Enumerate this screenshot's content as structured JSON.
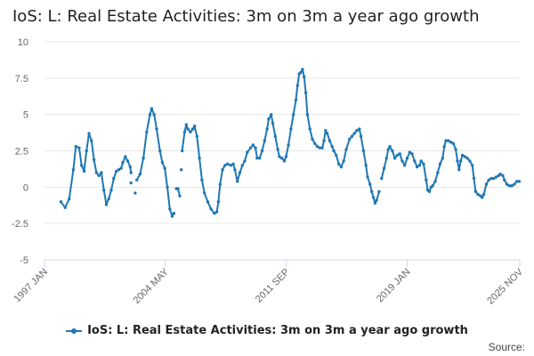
{
  "page": {
    "title": "IoS: L: Real Estate Activities: 3m on 3m a year ago growth",
    "source_label": "Source:"
  },
  "colors": {
    "series": "#1f78b4",
    "grid": "#e6e6e6",
    "axis": "#ccd6eb",
    "tick_text": "#666666"
  },
  "chart_data": {
    "type": "line",
    "title": "IoS: L: Real Estate Activities: 3m on 3m a year ago growth",
    "xlabel": "",
    "ylabel": "",
    "ylim": [
      -5,
      10
    ],
    "yticks": [
      10,
      7.5,
      5,
      2.5,
      0,
      -2.5,
      -5
    ],
    "ytick_labels": [
      "10",
      "7.5",
      "5",
      "2.5",
      "0",
      "-2.5",
      "-5"
    ],
    "xlim": [
      1997.0,
      2025.83
    ],
    "xticks": [
      1997.0,
      2004.33,
      2011.67,
      2019.0,
      2025.83
    ],
    "xtick_labels": [
      "1997 JAN",
      "2004 MAY",
      "2011 SEP",
      "2019 JAN",
      "2025 NOV"
    ],
    "grid": true,
    "legend": "bottom",
    "series": [
      {
        "name": "IoS: L: Real Estate Activities: 3m on 3m a year ago growth",
        "segments": [
          [
            [
              1998.0,
              -1.0
            ],
            [
              1998.25,
              -1.4
            ],
            [
              1998.5,
              -0.8
            ],
            [
              1998.75,
              1.2
            ],
            [
              1998.9,
              2.8
            ],
            [
              1999.1,
              2.7
            ],
            [
              1999.25,
              1.5
            ],
            [
              1999.4,
              1.1
            ],
            [
              1999.55,
              2.5
            ],
            [
              1999.7,
              3.7
            ],
            [
              1999.85,
              3.2
            ],
            [
              2000.0,
              1.9
            ],
            [
              2000.15,
              1.0
            ],
            [
              2000.3,
              0.8
            ],
            [
              2000.45,
              1.0
            ],
            [
              2000.6,
              -0.2
            ],
            [
              2000.75,
              -1.2
            ],
            [
              2000.9,
              -0.8
            ],
            [
              2001.05,
              -0.2
            ],
            [
              2001.2,
              0.6
            ],
            [
              2001.35,
              1.1
            ],
            [
              2001.5,
              1.2
            ],
            [
              2001.65,
              1.3
            ],
            [
              2001.75,
              1.7
            ],
            [
              2001.9,
              2.1
            ],
            [
              2002.05,
              1.8
            ],
            [
              2002.2,
              1.4
            ],
            [
              2002.25,
              1.0
            ]
          ],
          [
            [
              2002.25,
              0.3
            ]
          ],
          [
            [
              2002.5,
              -0.4
            ]
          ],
          [
            [
              2002.6,
              0.5
            ],
            [
              2002.8,
              0.9
            ],
            [
              2003.0,
              2.0
            ],
            [
              2003.2,
              3.8
            ],
            [
              2003.4,
              5.0
            ],
            [
              2003.5,
              5.4
            ],
            [
              2003.65,
              5.0
            ],
            [
              2003.8,
              4.0
            ],
            [
              2004.0,
              2.5
            ],
            [
              2004.15,
              1.7
            ],
            [
              2004.3,
              1.3
            ],
            [
              2004.45,
              0.0
            ],
            [
              2004.6,
              -1.5
            ],
            [
              2004.75,
              -2.0
            ],
            [
              2004.85,
              -1.8
            ]
          ],
          [
            [
              2005.0,
              -0.1
            ],
            [
              2005.1,
              -0.1
            ],
            [
              2005.2,
              -0.6
            ]
          ],
          [
            [
              2005.3,
              1.2
            ]
          ],
          [
            [
              2005.35,
              2.5
            ],
            [
              2005.5,
              3.8
            ],
            [
              2005.6,
              4.3
            ],
            [
              2005.7,
              4.0
            ],
            [
              2005.85,
              3.8
            ],
            [
              2006.0,
              4.0
            ],
            [
              2006.1,
              4.2
            ],
            [
              2006.25,
              3.5
            ],
            [
              2006.4,
              2.0
            ],
            [
              2006.55,
              0.5
            ],
            [
              2006.7,
              -0.4
            ],
            [
              2006.9,
              -1.0
            ],
            [
              2007.1,
              -1.5
            ],
            [
              2007.3,
              -1.8
            ],
            [
              2007.45,
              -1.7
            ],
            [
              2007.55,
              -1.0
            ],
            [
              2007.65,
              0.2
            ],
            [
              2007.8,
              1.2
            ],
            [
              2007.95,
              1.5
            ],
            [
              2008.1,
              1.6
            ],
            [
              2008.3,
              1.5
            ],
            [
              2008.45,
              1.6
            ],
            [
              2008.55,
              1.2
            ],
            [
              2008.7,
              0.4
            ],
            [
              2008.85,
              1.0
            ],
            [
              2009.0,
              1.5
            ],
            [
              2009.15,
              1.8
            ],
            [
              2009.3,
              2.4
            ],
            [
              2009.5,
              2.7
            ],
            [
              2009.65,
              2.9
            ],
            [
              2009.8,
              2.7
            ],
            [
              2009.9,
              2.0
            ],
            [
              2010.05,
              2.0
            ],
            [
              2010.2,
              2.5
            ],
            [
              2010.35,
              3.2
            ],
            [
              2010.5,
              4.0
            ],
            [
              2010.6,
              4.7
            ],
            [
              2010.75,
              5.0
            ],
            [
              2010.85,
              4.4
            ],
            [
              2011.0,
              3.5
            ],
            [
              2011.15,
              2.6
            ],
            [
              2011.25,
              2.1
            ],
            [
              2011.4,
              2.0
            ],
            [
              2011.55,
              1.8
            ],
            [
              2011.65,
              2.1
            ],
            [
              2011.8,
              2.9
            ],
            [
              2011.95,
              4.0
            ],
            [
              2012.1,
              5.0
            ],
            [
              2012.25,
              6.0
            ],
            [
              2012.35,
              7.0
            ],
            [
              2012.45,
              7.8
            ],
            [
              2012.55,
              7.9
            ],
            [
              2012.65,
              8.1
            ],
            [
              2012.75,
              7.6
            ],
            [
              2012.85,
              6.5
            ],
            [
              2012.95,
              5.0
            ],
            [
              2013.1,
              4.0
            ],
            [
              2013.25,
              3.3
            ],
            [
              2013.4,
              3.0
            ],
            [
              2013.55,
              2.8
            ],
            [
              2013.7,
              2.7
            ],
            [
              2013.85,
              2.7
            ],
            [
              2013.95,
              3.2
            ],
            [
              2014.05,
              3.9
            ],
            [
              2014.15,
              3.7
            ],
            [
              2014.3,
              3.2
            ],
            [
              2014.45,
              2.8
            ],
            [
              2014.55,
              2.5
            ],
            [
              2014.7,
              2.2
            ],
            [
              2014.85,
              1.6
            ],
            [
              2015.0,
              1.4
            ],
            [
              2015.15,
              1.8
            ],
            [
              2015.3,
              2.6
            ],
            [
              2015.5,
              3.3
            ],
            [
              2015.65,
              3.5
            ],
            [
              2015.8,
              3.7
            ],
            [
              2015.95,
              3.9
            ],
            [
              2016.1,
              4.0
            ],
            [
              2016.2,
              3.5
            ],
            [
              2016.35,
              2.5
            ],
            [
              2016.5,
              1.5
            ],
            [
              2016.6,
              0.7
            ],
            [
              2016.75,
              0.2
            ],
            [
              2016.85,
              -0.3
            ],
            [
              2016.95,
              -0.7
            ],
            [
              2017.05,
              -1.1
            ],
            [
              2017.15,
              -0.9
            ],
            [
              2017.3,
              -0.3
            ]
          ],
          [
            [
              2017.45,
              0.6
            ],
            [
              2017.6,
              1.3
            ],
            [
              2017.75,
              2.0
            ],
            [
              2017.85,
              2.6
            ],
            [
              2017.95,
              2.8
            ],
            [
              2018.1,
              2.5
            ],
            [
              2018.25,
              2.0
            ],
            [
              2018.4,
              2.2
            ],
            [
              2018.55,
              2.3
            ],
            [
              2018.7,
              1.8
            ],
            [
              2018.85,
              1.5
            ],
            [
              2019.0,
              2.0
            ],
            [
              2019.15,
              2.4
            ],
            [
              2019.3,
              2.3
            ],
            [
              2019.45,
              1.8
            ],
            [
              2019.6,
              1.4
            ],
            [
              2019.75,
              1.5
            ],
            [
              2019.85,
              1.8
            ],
            [
              2020.0,
              1.6
            ],
            [
              2020.15,
              0.5
            ],
            [
              2020.25,
              -0.2
            ],
            [
              2020.35,
              -0.3
            ],
            [
              2020.45,
              0.0
            ]
          ],
          [
            [
              2020.55,
              0.1
            ],
            [
              2020.7,
              0.4
            ],
            [
              2020.85,
              1.0
            ],
            [
              2021.0,
              1.6
            ],
            [
              2021.15,
              2.0
            ],
            [
              2021.25,
              2.8
            ],
            [
              2021.35,
              3.2
            ],
            [
              2021.5,
              3.2
            ],
            [
              2021.65,
              3.1
            ],
            [
              2021.8,
              3.0
            ],
            [
              2021.95,
              2.6
            ],
            [
              2022.05,
              1.8
            ],
            [
              2022.15,
              1.2
            ],
            [
              2022.25,
              1.8
            ],
            [
              2022.35,
              2.2
            ],
            [
              2022.5,
              2.1
            ],
            [
              2022.65,
              2.0
            ],
            [
              2022.8,
              1.8
            ],
            [
              2022.95,
              1.5
            ],
            [
              2023.05,
              0.6
            ],
            [
              2023.15,
              -0.3
            ],
            [
              2023.3,
              -0.5
            ],
            [
              2023.45,
              -0.6
            ],
            [
              2023.55,
              -0.7
            ],
            [
              2023.65,
              -0.5
            ],
            [
              2023.8,
              0.2
            ],
            [
              2023.95,
              0.5
            ],
            [
              2024.1,
              0.6
            ],
            [
              2024.25,
              0.6
            ],
            [
              2024.4,
              0.7
            ],
            [
              2024.55,
              0.8
            ],
            [
              2024.65,
              0.9
            ],
            [
              2024.8,
              0.8
            ],
            [
              2024.9,
              0.5
            ],
            [
              2025.05,
              0.2
            ],
            [
              2025.2,
              0.1
            ],
            [
              2025.35,
              0.1
            ],
            [
              2025.5,
              0.2
            ],
            [
              2025.65,
              0.4
            ],
            [
              2025.8,
              0.4
            ]
          ]
        ]
      }
    ]
  }
}
